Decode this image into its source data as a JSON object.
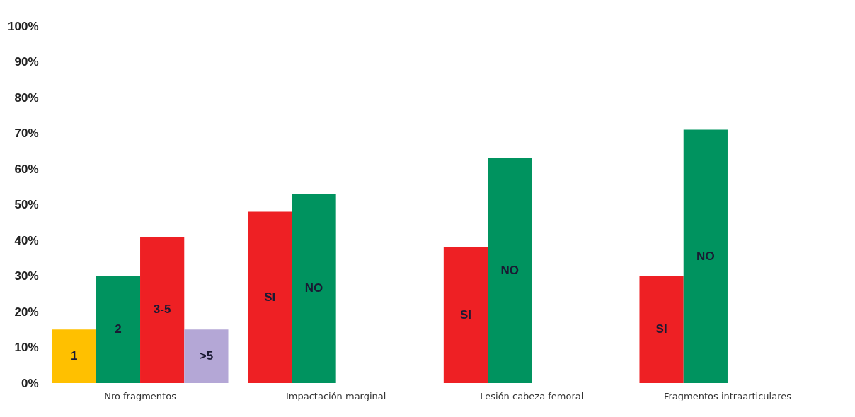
{
  "chart_data": {
    "type": "bar",
    "categories": [
      "Nro fragmentos",
      "Impactación marginal",
      "Lesión cabeza femoral",
      "Fragmentos intraarticulares"
    ],
    "series": [
      {
        "name": "1",
        "color": "#ffc000",
        "values": [
          15,
          null,
          null,
          null
        ]
      },
      {
        "name": "2",
        "color": "#00935f",
        "values": [
          30,
          null,
          null,
          null
        ]
      },
      {
        "name": "3-5",
        "color": "#ee2024",
        "values": [
          41,
          null,
          null,
          null
        ]
      },
      {
        "name": ">5",
        "color": "#b4a7d6",
        "values": [
          15,
          null,
          null,
          null
        ]
      },
      {
        "name": "SI",
        "color": "#ee2024",
        "values": [
          null,
          48,
          38,
          30
        ]
      },
      {
        "name": "NO",
        "color": "#00935f",
        "values": [
          null,
          53,
          63,
          71
        ]
      }
    ],
    "ylim": [
      0,
      100
    ],
    "yticks": [
      {
        "value": 0,
        "label": "0%"
      },
      {
        "value": 10,
        "label": "10%"
      },
      {
        "value": 20,
        "label": "20%"
      },
      {
        "value": 30,
        "label": "30%"
      },
      {
        "value": 40,
        "label": "40%"
      },
      {
        "value": 50,
        "label": "50%"
      },
      {
        "value": 60,
        "label": "60%"
      },
      {
        "value": 70,
        "label": "70%"
      },
      {
        "value": 80,
        "label": "80%"
      },
      {
        "value": 90,
        "label": "90%"
      },
      {
        "value": 100,
        "label": "100%"
      }
    ],
    "grid": false,
    "legend": false
  }
}
